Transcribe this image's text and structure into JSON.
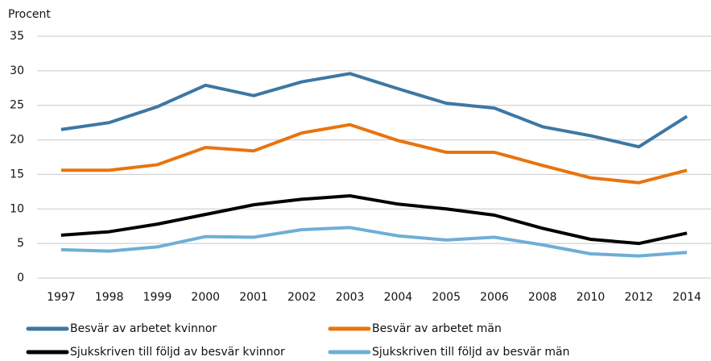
{
  "chart_data": {
    "type": "line",
    "y_label": "Procent",
    "categories": [
      "1997",
      "1998",
      "1999",
      "2000",
      "2001",
      "2002",
      "2003",
      "2004",
      "2005",
      "2006",
      "2008",
      "2010",
      "2012",
      "2014"
    ],
    "ylim": [
      0,
      35
    ],
    "yticks": [
      0,
      5,
      10,
      15,
      20,
      25,
      30,
      35
    ],
    "grid": true,
    "series": [
      {
        "name": "Besvär av arbetet kvinnor",
        "color": "#3e77a3",
        "values": [
          21.5,
          22.5,
          24.8,
          27.9,
          26.4,
          28.4,
          29.6,
          27.4,
          25.3,
          24.6,
          21.9,
          20.6,
          19.0,
          23.4
        ]
      },
      {
        "name": "Besvär av arbetet män",
        "color": "#e8740f",
        "values": [
          15.6,
          15.6,
          16.4,
          18.9,
          18.4,
          21.0,
          22.2,
          19.9,
          18.2,
          18.2,
          16.3,
          14.5,
          13.8,
          15.6
        ]
      },
      {
        "name": "Sjukskriven till följd av besvär kvinnor",
        "color": "#000000",
        "values": [
          6.2,
          6.7,
          7.8,
          9.2,
          10.6,
          11.4,
          11.9,
          10.7,
          10.0,
          9.1,
          7.2,
          5.6,
          5.0,
          6.5
        ]
      },
      {
        "name": "Sjukskriven till följd av besvär män",
        "color": "#6eaed6",
        "values": [
          4.1,
          3.9,
          4.5,
          6.0,
          5.9,
          7.0,
          7.3,
          6.1,
          5.5,
          5.9,
          4.8,
          3.5,
          3.2,
          3.7
        ]
      }
    ]
  }
}
